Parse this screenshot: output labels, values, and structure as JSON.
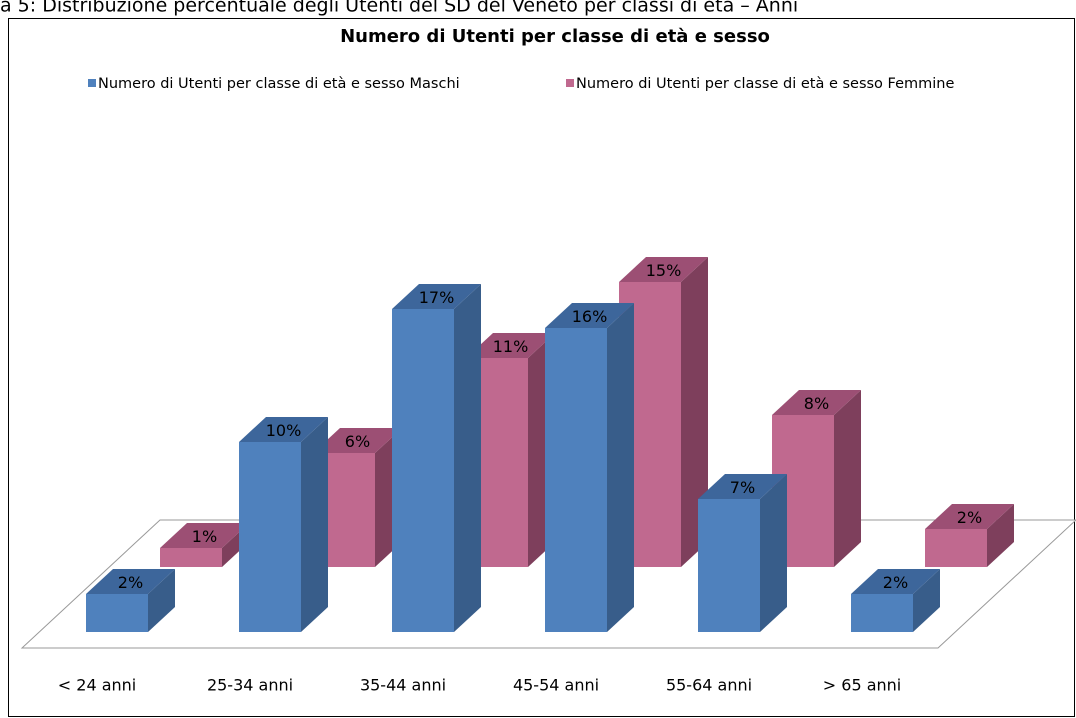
{
  "chart_data": {
    "type": "bar3d",
    "caption": "a 5: Distribuzione percentuale degli Utenti del SD del Veneto per classi di età – Anni",
    "title": "Numero di Utenti per classe di età e sesso",
    "categories": [
      "< 24 anni",
      "25-34 anni",
      "35-44 anni",
      "45-54 anni",
      "55-64 anni",
      "> 65 anni"
    ],
    "series": [
      {
        "name": "Numero di Utenti per classe di età e sesso Maschi",
        "color": "#4f81bd",
        "side_color": "#385d8a",
        "top_color": "#3d669b",
        "values": [
          2,
          10,
          17,
          16,
          7,
          2
        ],
        "value_labels": [
          "2%",
          "10%",
          "17%",
          "16%",
          "7%",
          "2%"
        ]
      },
      {
        "name": "Numero di Utenti per classe di età e sesso Femmine",
        "color": "#c0698f",
        "side_color": "#7e3f5c",
        "top_color": "#9c4f74",
        "values": [
          1,
          6,
          11,
          15,
          8,
          2
        ],
        "value_labels": [
          "1%",
          "6%",
          "11%",
          "15%",
          "8%",
          "2%"
        ]
      }
    ]
  }
}
